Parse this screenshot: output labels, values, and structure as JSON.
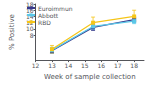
{
  "chart_data": {
    "type": "line",
    "x": [
      13,
      15.5,
      18
    ],
    "series": [
      {
        "name": "Euroimmun",
        "color": "#3a3a8c",
        "marker": "square",
        "values": [
          3.0,
          10.5,
          13.0
        ],
        "yerr_lo": [
          0.8,
          1.0,
          0.8
        ],
        "yerr_hi": [
          0.8,
          1.0,
          0.8
        ]
      },
      {
        "name": "Abbott",
        "color": "#5bc8e8",
        "marker": "square",
        "values": [
          3.2,
          10.8,
          12.5
        ],
        "yerr_lo": [
          0.9,
          1.0,
          0.8
        ],
        "yerr_hi": [
          0.9,
          1.0,
          0.8
        ]
      },
      {
        "name": "RBD",
        "color": "#f5c518",
        "marker": "square",
        "values": [
          3.5,
          12.0,
          14.0
        ],
        "yerr_lo": [
          1.2,
          1.8,
          1.5
        ],
        "yerr_hi": [
          1.2,
          1.8,
          2.0
        ]
      }
    ],
    "xlabel": "Week of sample collection",
    "ylabel": "% Positive",
    "xlim": [
      12,
      18.6
    ],
    "ylim": [
      0,
      18
    ],
    "xticks": [
      12,
      13,
      14,
      15,
      16,
      17,
      18
    ],
    "yticks": [
      8,
      10,
      12,
      14,
      16,
      18
    ],
    "legend": "upper left",
    "grid": false
  }
}
